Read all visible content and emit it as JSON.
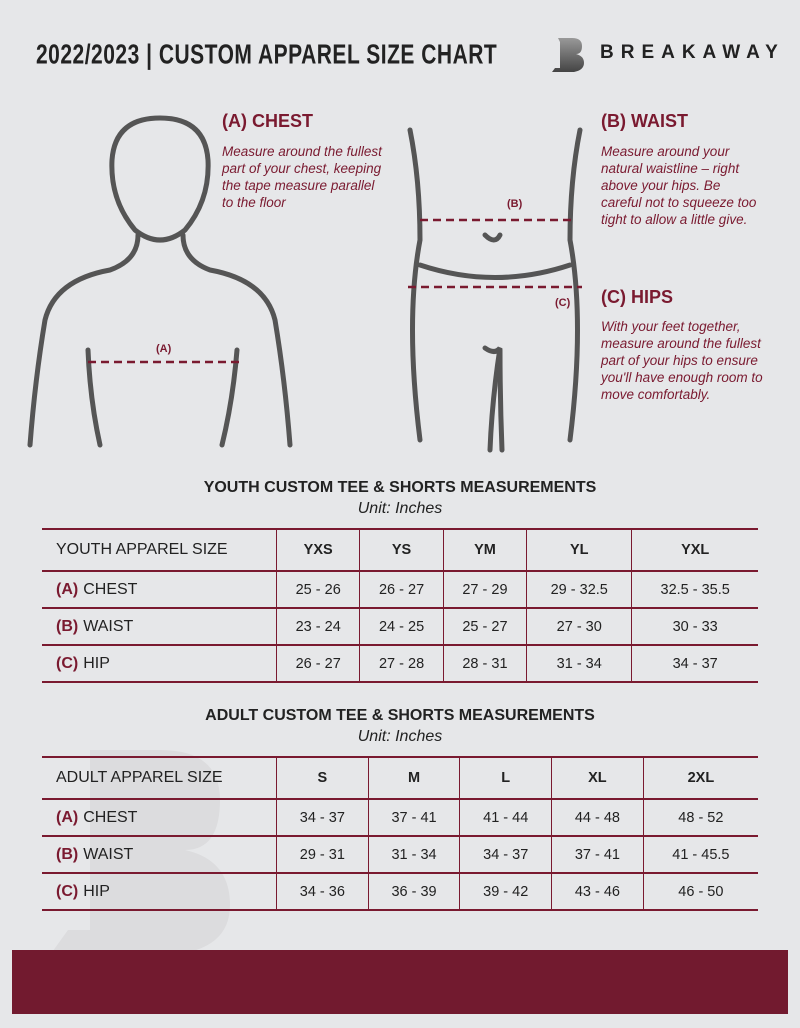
{
  "header": {
    "title": "2022/2023  |  CUSTOM APPAREL SIZE CHART",
    "brand": "BREAKAWAY",
    "logo_letter": "B"
  },
  "chest": {
    "heading": "(A) CHEST",
    "text": "Measure around the fullest part of your chest, keeping the tape measure parallel to the floor",
    "marker": "(A)"
  },
  "waist": {
    "heading": "(B) WAIST",
    "text": "Measure around your natural waistline – right above your hips. Be careful not to squeeze too tight to allow a little give.",
    "marker": "(B)"
  },
  "hips": {
    "heading": "(C) HIPS",
    "text": "With your feet together, measure around the fullest part of your hips to ensure you'll have enough room to move comfortably.",
    "marker": "(C)"
  },
  "youth": {
    "title": "YOUTH CUSTOM TEE & SHORTS MEASUREMENTS",
    "unit": "Unit: Inches",
    "size_label": "YOUTH APPAREL SIZE",
    "sizes": [
      "YXS",
      "YS",
      "YM",
      "YL",
      "YXL"
    ],
    "rows": [
      {
        "letter": "(A)",
        "name": "CHEST",
        "values": [
          "25 - 26",
          "26 - 27",
          "27 - 29",
          "29 - 32.5",
          "32.5 - 35.5"
        ]
      },
      {
        "letter": "(B)",
        "name": "WAIST",
        "values": [
          "23 - 24",
          "24 - 25",
          "25 - 27",
          "27 - 30",
          "30 - 33"
        ]
      },
      {
        "letter": "(C)",
        "name": "HIP",
        "values": [
          "26 - 27",
          "27 - 28",
          "28 - 31",
          "31 - 34",
          "34 - 37"
        ]
      }
    ]
  },
  "adult": {
    "title": "ADULT CUSTOM TEE & SHORTS MEASUREMENTS",
    "unit": "Unit: Inches",
    "size_label": "ADULT APPAREL SIZE",
    "sizes": [
      "S",
      "M",
      "L",
      "XL",
      "2XL"
    ],
    "rows": [
      {
        "letter": "(A)",
        "name": "CHEST",
        "values": [
          "34 - 37",
          "37 - 41",
          "41 - 44",
          "44 - 48",
          "48 - 52"
        ]
      },
      {
        "letter": "(B)",
        "name": "WAIST",
        "values": [
          "29 - 31",
          "31 - 34",
          "34 - 37",
          "37 - 41",
          "41 - 45.5"
        ]
      },
      {
        "letter": "(C)",
        "name": "HIP",
        "values": [
          "34 - 36",
          "36 - 39",
          "39 - 42",
          "43 - 46",
          "46 - 50"
        ]
      }
    ]
  },
  "colors": {
    "accent": "#7a1a30",
    "background": "#e6e7e9"
  }
}
